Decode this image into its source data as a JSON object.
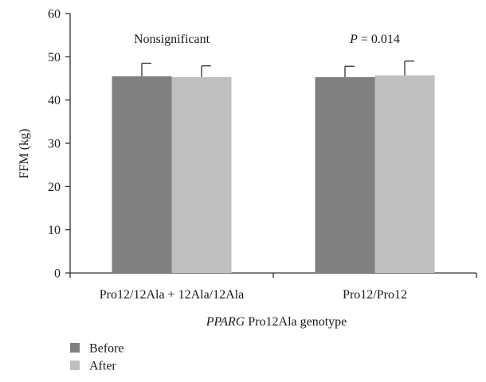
{
  "chart_data": {
    "type": "bar",
    "categories": [
      "Pro12/12Ala + 12Ala/12Ala",
      "Pro12/Pro12"
    ],
    "series": [
      {
        "name": "Before",
        "values": [
          45.5,
          45.3
        ],
        "error": [
          3.0,
          2.5
        ],
        "color": "#808080"
      },
      {
        "name": "After",
        "values": [
          45.3,
          45.7
        ],
        "error": [
          2.6,
          3.3
        ],
        "color": "#bfbfbf"
      }
    ],
    "annotations": [
      {
        "category": 0,
        "parts": [
          {
            "text": "Nonsignificant",
            "italic": false
          }
        ]
      },
      {
        "category": 1,
        "parts": [
          {
            "text": "P",
            "italic": true
          },
          {
            "text": " = 0.014",
            "italic": false
          }
        ]
      }
    ],
    "ylabel": "FFM (kg)",
    "xlabel": {
      "italic_part": "PPARG",
      "rest": " Pro12Ala genotype"
    },
    "ylim": [
      0,
      60
    ],
    "yticks": [
      0,
      10,
      20,
      30,
      40,
      50,
      60
    ],
    "grid": false,
    "legend_position": "bottom-left",
    "axis_color": "#333333"
  }
}
